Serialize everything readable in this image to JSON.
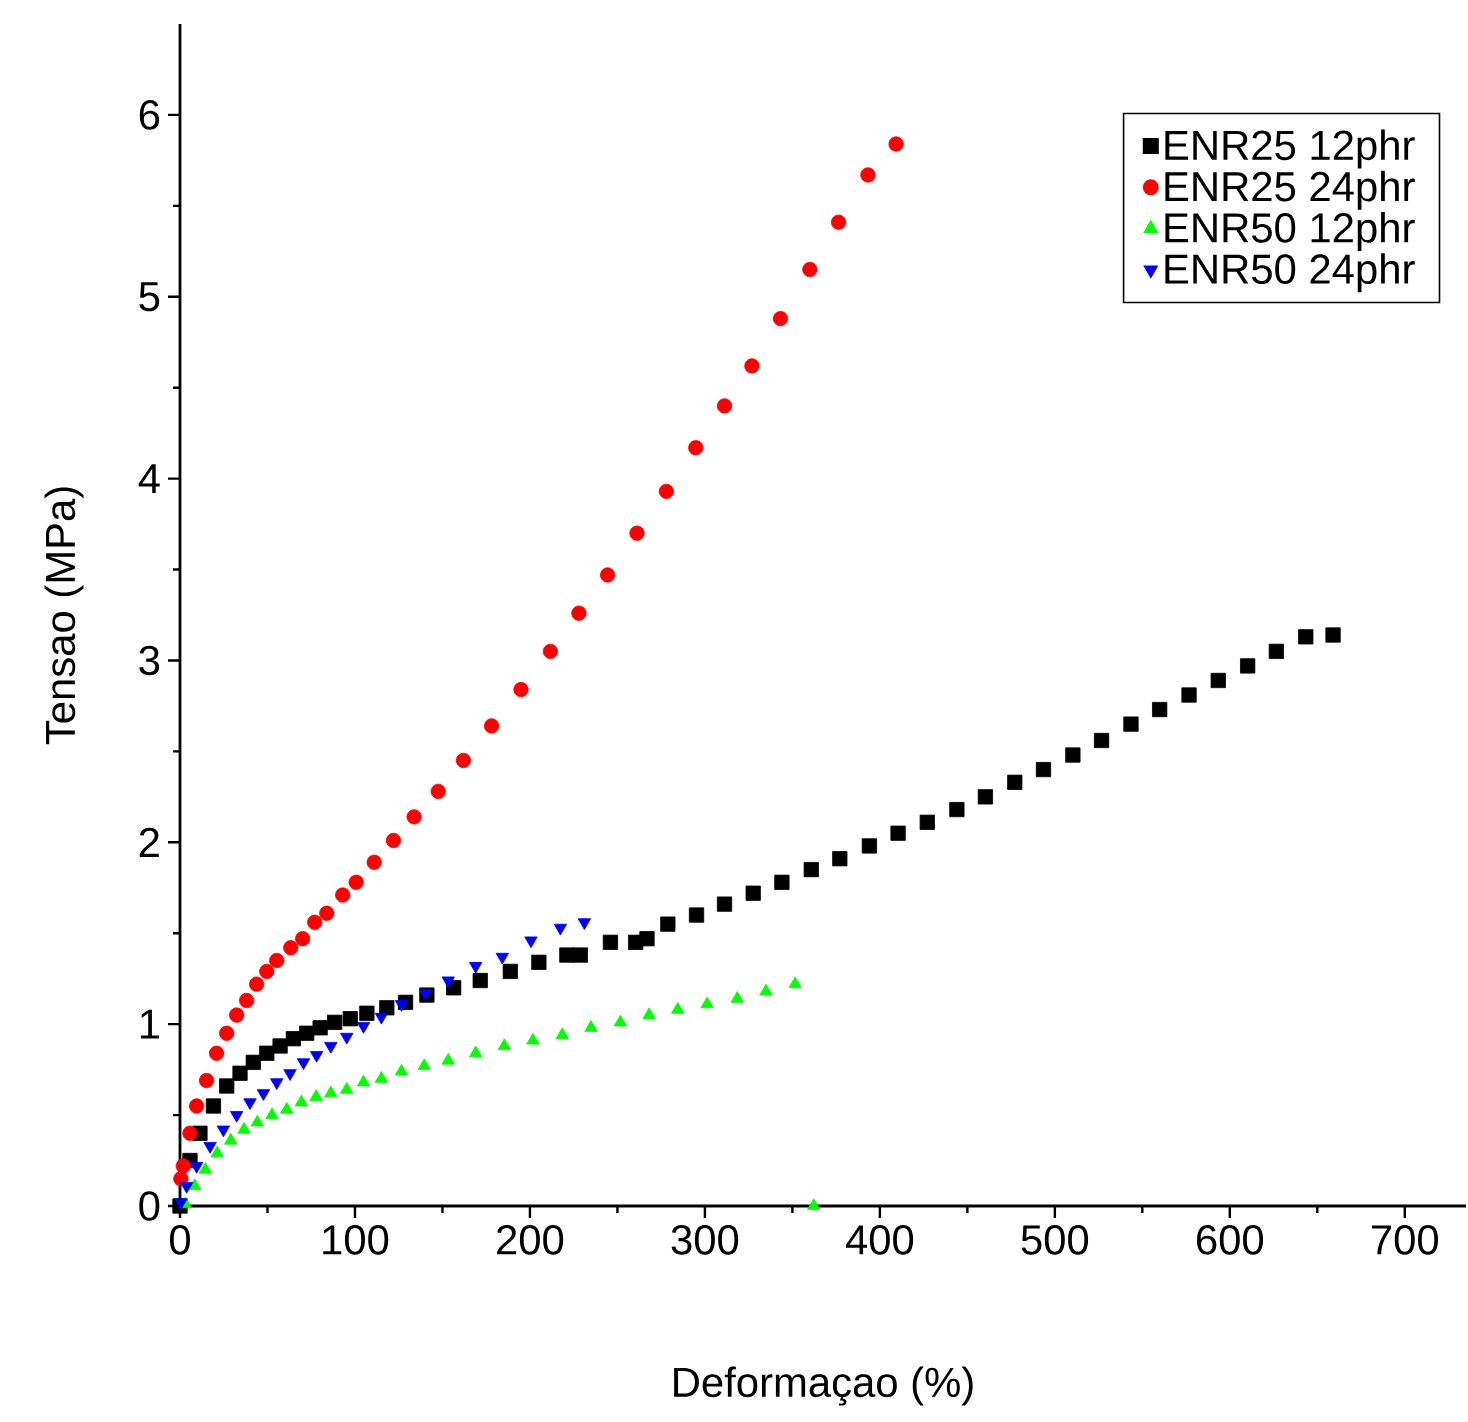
{
  "chart_data": {
    "type": "scatter",
    "xlabel": "Deformaçao (%)",
    "ylabel": "Tensao (MPa)",
    "xlim": [
      0,
      735
    ],
    "ylim": [
      0,
      6.5
    ],
    "xticks": [
      0,
      100,
      200,
      300,
      400,
      500,
      600,
      700
    ],
    "yticks": [
      0,
      1,
      2,
      3,
      4,
      5,
      6
    ],
    "legend": "top right",
    "grid": false,
    "series": [
      {
        "name": "ENR25 12phr",
        "color": "#000000",
        "marker": "square",
        "x": [
          0,
          1.9,
          5.7,
          11.4,
          19.1,
          26.7,
          34.3,
          41.9,
          49.6,
          57.2,
          64.8,
          72.4,
          80.1,
          88.4,
          97.3,
          106.8,
          118.2,
          128.9,
          141.1,
          156.4,
          171.6,
          188.8,
          205.1,
          221.1,
          228.8,
          246,
          260.4,
          266.9,
          278.8,
          295.2,
          311.2,
          327.6,
          344,
          360.8,
          377.1,
          394,
          410.4,
          427.1,
          444,
          460.3,
          477.1,
          493.5,
          510.3,
          526.7,
          543.5,
          559.9,
          576.7,
          593.4,
          610.2,
          626.6,
          643.4,
          659
        ],
        "values": [
          0,
          null,
          0.25,
          0.4,
          0.55,
          0.66,
          0.73,
          0.79,
          0.84,
          0.88,
          0.92,
          0.95,
          0.98,
          1.01,
          1.03,
          1.06,
          1.09,
          1.12,
          1.16,
          1.2,
          1.24,
          1.29,
          1.34,
          1.38,
          1.38,
          1.45,
          1.45,
          1.47,
          1.55,
          1.6,
          1.66,
          1.72,
          1.78,
          1.85,
          1.91,
          1.98,
          2.05,
          2.11,
          2.18,
          2.25,
          2.33,
          2.4,
          2.48,
          2.56,
          2.65,
          2.73,
          2.81,
          2.89,
          2.97,
          3.05,
          3.13,
          3.14
        ]
      },
      {
        "name": "ENR25 24phr",
        "color": "#ff0000",
        "marker": "circle",
        "x": [
          0.5,
          1.9,
          5.7,
          9.5,
          15.2,
          20.9,
          26.7,
          32.4,
          38.1,
          43.8,
          49.6,
          55.3,
          63.3,
          70.1,
          77,
          83.9,
          93,
          100.7,
          111,
          122,
          133.8,
          147.6,
          162,
          178.1,
          194.9,
          211.7,
          228,
          244.4,
          261.2,
          278,
          294.8,
          311.2,
          326.9,
          343.2,
          360,
          376.4,
          393.2,
          409.3
        ],
        "values": [
          0.15,
          0.22,
          0.4,
          0.55,
          0.69,
          0.84,
          0.95,
          1.05,
          1.13,
          1.22,
          1.29,
          1.35,
          1.42,
          1.47,
          1.56,
          1.61,
          1.71,
          1.78,
          1.89,
          2.01,
          2.14,
          2.28,
          2.45,
          2.64,
          2.84,
          3.05,
          3.26,
          3.47,
          3.7,
          3.93,
          4.17,
          4.4,
          4.62,
          4.88,
          5.15,
          5.41,
          5.67,
          5.84
        ]
      },
      {
        "name": "ENR50 12phr",
        "color": "#00ff00",
        "marker": "triangle",
        "x": [
          3.1,
          8.4,
          14.5,
          21.3,
          29,
          36.6,
          44.2,
          52.6,
          61,
          69.4,
          77.8,
          86.2,
          95.3,
          104.9,
          115.1,
          126.6,
          139.6,
          153.3,
          169,
          185.4,
          201.7,
          218.5,
          234.9,
          251.7,
          268.1,
          284.5,
          301.3,
          318.5,
          334.9,
          351.6,
          362.2
        ],
        "values": [
          0.01,
          0.11,
          0.2,
          0.29,
          0.36,
          0.42,
          0.46,
          0.5,
          0.53,
          0.57,
          0.6,
          0.62,
          0.64,
          0.68,
          0.7,
          0.74,
          0.77,
          0.8,
          0.84,
          0.88,
          0.91,
          0.94,
          0.98,
          1.01,
          1.05,
          1.08,
          1.11,
          1.14,
          1.18,
          1.22,
          0
        ]
      },
      {
        "name": "ENR50 24phr",
        "color": "#0000ff",
        "marker": "triangle-down",
        "x": [
          0.5,
          3.8,
          9.5,
          17.2,
          24.8,
          32.4,
          40,
          47.7,
          55.3,
          62.9,
          70.6,
          78.1,
          86.2,
          95.3,
          104.9,
          115.1,
          126.6,
          140.4,
          153.3,
          169,
          184.2,
          200.6,
          217.4,
          231.1
        ],
        "values": [
          0.02,
          0.11,
          0.22,
          0.33,
          0.42,
          0.5,
          0.57,
          0.62,
          0.68,
          0.73,
          0.79,
          0.83,
          0.88,
          0.93,
          0.99,
          1.04,
          1.11,
          1.17,
          1.24,
          1.32,
          1.37,
          1.46,
          1.53,
          1.56
        ]
      }
    ]
  }
}
